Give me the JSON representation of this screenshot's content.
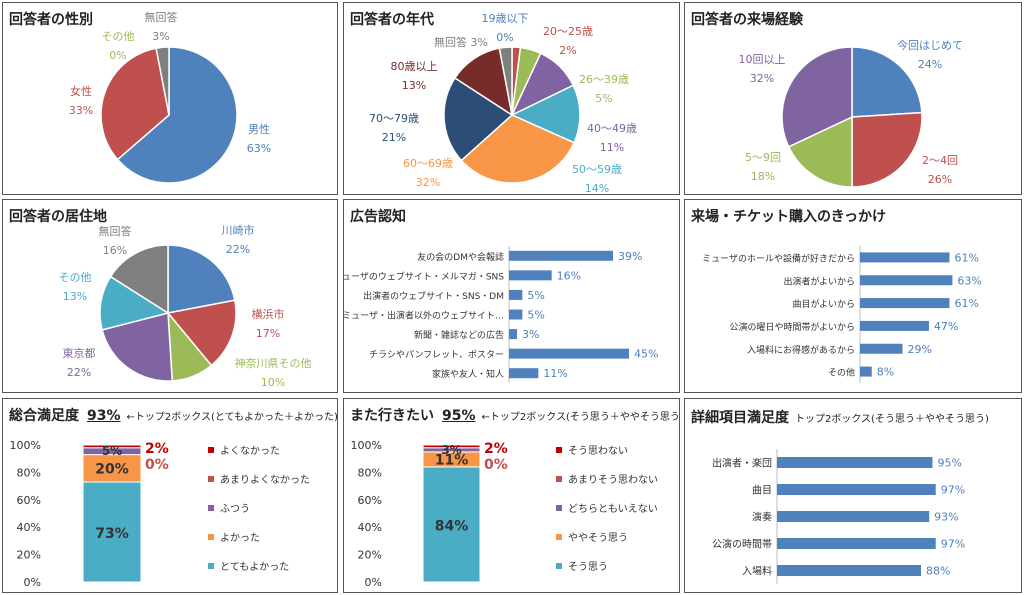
{
  "charts": {
    "gender": {
      "title": "回答者の性別",
      "chart_data": {
        "type": "pie",
        "slices": [
          {
            "name": "男性",
            "value": 63,
            "label": "63%",
            "color": "#4F81BD"
          },
          {
            "name": "女性",
            "value": 33,
            "label": "33%",
            "color": "#C0504D"
          },
          {
            "name": "その他",
            "value": 0,
            "label": "0%",
            "color": "#9BBB59"
          },
          {
            "name": "無回答",
            "value": 3,
            "label": "3%",
            "color": "#7F7F7F"
          }
        ]
      }
    },
    "age": {
      "title": "回答者の年代",
      "chart_data": {
        "type": "pie",
        "slices": [
          {
            "name": "19歳以下",
            "value": 0,
            "label": "0%",
            "color": "#4F81BD"
          },
          {
            "name": "20～25歳",
            "value": 2,
            "label": "2%",
            "color": "#C0504D"
          },
          {
            "name": "26～39歳",
            "value": 5,
            "label": "5%",
            "color": "#9BBB59"
          },
          {
            "name": "40～49歳",
            "value": 11,
            "label": "11%",
            "color": "#8064A2"
          },
          {
            "name": "50～59歳",
            "value": 14,
            "label": "14%",
            "color": "#4BACC6"
          },
          {
            "name": "60～69歳",
            "value": 32,
            "label": "32%",
            "color": "#F79646"
          },
          {
            "name": "70～79歳",
            "value": 21,
            "label": "21%",
            "color": "#2C4D75"
          },
          {
            "name": "80歳以上",
            "value": 13,
            "label": "13%",
            "color": "#772C2A"
          },
          {
            "name": "無回答",
            "value": 3,
            "label": "3%",
            "color": "#7F7F7F"
          }
        ]
      }
    },
    "visits": {
      "title": "回答者の来場経験",
      "chart_data": {
        "type": "pie",
        "slices": [
          {
            "name": "今回はじめて",
            "value": 24,
            "label": "24%",
            "color": "#4F81BD"
          },
          {
            "name": "2～4回",
            "value": 26,
            "label": "26%",
            "color": "#C0504D"
          },
          {
            "name": "5～9回",
            "value": 18,
            "label": "18%",
            "color": "#9BBB59"
          },
          {
            "name": "10回以上",
            "value": 32,
            "label": "32%",
            "color": "#8064A2"
          }
        ]
      }
    },
    "residence": {
      "title": "回答者の居住地",
      "chart_data": {
        "type": "pie",
        "slices": [
          {
            "name": "川崎市",
            "value": 22,
            "label": "22%",
            "color": "#4F81BD"
          },
          {
            "name": "横浜市",
            "value": 17,
            "label": "17%",
            "color": "#C0504D"
          },
          {
            "name": "神奈川県その他",
            "value": 10,
            "label": "10%",
            "color": "#9BBB59"
          },
          {
            "name": "東京都",
            "value": 22,
            "label": "22%",
            "color": "#8064A2"
          },
          {
            "name": "その他",
            "value": 13,
            "label": "13%",
            "color": "#4BACC6"
          },
          {
            "name": "無回答",
            "value": 16,
            "label": "16%",
            "color": "#7F7F7F"
          }
        ]
      }
    },
    "ad": {
      "title": "広告認知",
      "chart_data": {
        "type": "bar",
        "orientation": "horizontal",
        "color": "#4F81BD",
        "categories": [
          "友の会のDMや会報誌",
          "ミューザのウェブサイト・メルマガ・SNS",
          "出演者のウェブサイト・SNS・DM",
          "ミューザ・出演者以外のウェブサイト…",
          "新聞・雑誌などの広告",
          "チラシやパンフレット、ポスター",
          "家族や友人・知人"
        ],
        "values": [
          39,
          16,
          5,
          5,
          3,
          45,
          11
        ],
        "labels": [
          "39%",
          "16%",
          "5%",
          "5%",
          "3%",
          "45%",
          "11%"
        ],
        "xlim": [
          0,
          60
        ]
      }
    },
    "trigger": {
      "title": "来場・チケット購入のきっかけ",
      "chart_data": {
        "type": "bar",
        "orientation": "horizontal",
        "color": "#4F81BD",
        "categories": [
          "ミューザのホールや設備が好きだから",
          "出演者がよいから",
          "曲目がよいから",
          "公演の曜日や時間帯がよいから",
          "入場料にお得感があるから",
          "その他"
        ],
        "values": [
          61,
          63,
          61,
          47,
          29,
          8
        ],
        "labels": [
          "61%",
          "63%",
          "61%",
          "47%",
          "29%",
          "8%"
        ],
        "xlim": [
          0,
          75
        ]
      }
    },
    "overall": {
      "title": "総合満足度",
      "headline": "93%",
      "note": "←トップ2ボックス(とてもよかった＋よかった)",
      "chart_data": {
        "type": "bar",
        "stacked": true,
        "ylim": [
          0,
          100
        ],
        "yticks": [
          "0%",
          "20%",
          "40%",
          "60%",
          "80%",
          "100%"
        ],
        "series": [
          {
            "name": "とてもよかった",
            "value": 73,
            "label": "73%",
            "color": "#4BACC6"
          },
          {
            "name": "よかった",
            "value": 20,
            "label": "20%",
            "color": "#F79646"
          },
          {
            "name": "ふつう",
            "value": 5,
            "label": "5%",
            "color": "#8064A2"
          },
          {
            "name": "あまりよくなかった",
            "value": 0,
            "label": "0%",
            "color": "#C0504D"
          },
          {
            "name": "よくなかった",
            "value": 2,
            "label": "2%",
            "color": "#C00000"
          }
        ],
        "legend_order": [
          "よくなかった",
          "あまりよくなかった",
          "ふつう",
          "よかった",
          "とてもよかった"
        ]
      }
    },
    "again": {
      "title": "また行きたい",
      "headline": "95%",
      "note": "←トップ2ボックス(そう思う＋ややそう思う)",
      "chart_data": {
        "type": "bar",
        "stacked": true,
        "ylim": [
          0,
          100
        ],
        "yticks": [
          "0%",
          "20%",
          "40%",
          "60%",
          "80%",
          "100%"
        ],
        "series": [
          {
            "name": "そう思う",
            "value": 84,
            "label": "84%",
            "color": "#4BACC6"
          },
          {
            "name": "ややそう思う",
            "value": 11,
            "label": "11%",
            "color": "#F79646"
          },
          {
            "name": "どちらともいえない",
            "value": 3,
            "label": "3%",
            "color": "#8064A2"
          },
          {
            "name": "あまりそう思わない",
            "value": 0,
            "label": "0%",
            "color": "#C0504D"
          },
          {
            "name": "そう思わない",
            "value": 2,
            "label": "2%",
            "color": "#C00000"
          }
        ],
        "legend_order": [
          "そう思わない",
          "あまりそう思わない",
          "どちらともいえない",
          "ややそう思う",
          "そう思う"
        ]
      }
    },
    "detail": {
      "title": "詳細項目満足度",
      "note": "トップ2ボックス(そう思う＋ややそう思う)",
      "chart_data": {
        "type": "bar",
        "orientation": "horizontal",
        "color": "#4F81BD",
        "categories": [
          "出演者・楽団",
          "曲目",
          "演奏",
          "公演の時間帯",
          "入場料"
        ],
        "values": [
          95,
          97,
          93,
          97,
          88
        ],
        "labels": [
          "95%",
          "97%",
          "93%",
          "97%",
          "88%"
        ],
        "xlim": [
          0,
          110
        ]
      }
    }
  }
}
